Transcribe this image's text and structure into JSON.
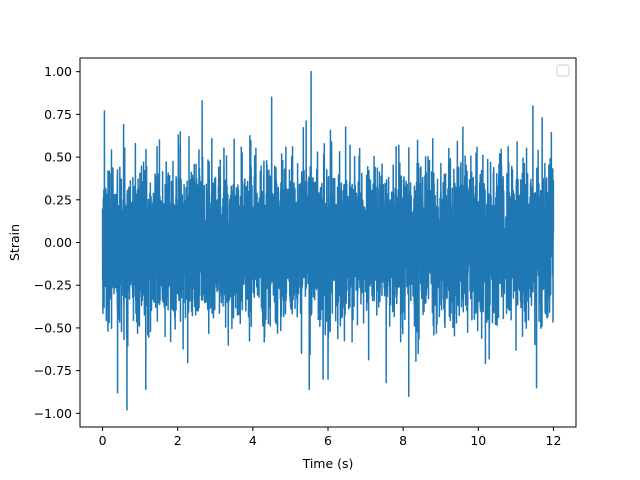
{
  "chart_data": {
    "type": "line",
    "title": "",
    "xlabel": "Time (s)",
    "ylabel": "Strain",
    "xlim": [
      -0.6,
      12.6
    ],
    "ylim": [
      -1.08,
      1.08
    ],
    "x_ticks": [
      0,
      2,
      4,
      6,
      8,
      10,
      12
    ],
    "x_tick_labels": [
      "0",
      "2",
      "4",
      "6",
      "8",
      "10",
      "12"
    ],
    "y_ticks": [
      -1.0,
      -0.75,
      -0.5,
      -0.25,
      0.0,
      0.25,
      0.5,
      0.75,
      1.0
    ],
    "y_tick_labels": [
      "−1.00",
      "−0.75",
      "−0.50",
      "−0.25",
      "0.00",
      "0.25",
      "0.50",
      "0.75",
      "1.00"
    ],
    "grid": false,
    "legend": {
      "placement": "top-right",
      "entries": []
    },
    "series_color": "#1f77b4",
    "series": [
      {
        "x_range": [
          0,
          12
        ],
        "typical_band": [
          -0.45,
          0.45
        ],
        "notable_points": [
          {
            "x": 0.05,
            "y": 0.77
          },
          {
            "x": 0.65,
            "y": -0.98
          },
          {
            "x": 0.4,
            "y": -0.88
          },
          {
            "x": 1.15,
            "y": -0.86
          },
          {
            "x": 2.65,
            "y": 0.83
          },
          {
            "x": 4.5,
            "y": 0.85
          },
          {
            "x": 5.55,
            "y": 1.0
          },
          {
            "x": 5.5,
            "y": -0.86
          },
          {
            "x": 7.55,
            "y": -0.82
          },
          {
            "x": 8.15,
            "y": -0.9
          },
          {
            "x": 11.55,
            "y": -0.85
          },
          {
            "x": 11.7,
            "y": 0.73
          }
        ]
      }
    ]
  }
}
